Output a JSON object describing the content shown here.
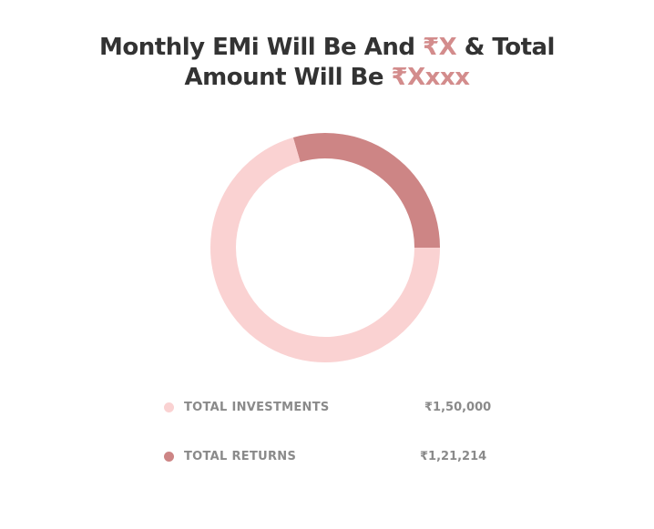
{
  "heading": {
    "line1_prefix": "Monthly EMi Will Be And ",
    "line1_amount": "₹X",
    "line1_suffix": " & Total",
    "line2_prefix": "Amount Will Be ",
    "line2_amount": "₹Xxxx"
  },
  "colors": {
    "heading_text": "#333333",
    "accent": "#d38c8c",
    "investments": "#fad2d2",
    "returns": "#cd8585",
    "legend_text": "#8a8a8a"
  },
  "chart_data": {
    "type": "pie",
    "style": "donut",
    "start": "top",
    "direction": "clockwise",
    "first_slice": "returns",
    "slices": [
      {
        "label": "TOTAL RETURNS",
        "value": 121214,
        "display": "₹1,21,214",
        "color": "#cd8585"
      },
      {
        "label": "TOTAL INVESTMENTS",
        "value": 150000,
        "display": "₹1,50,000",
        "color": "#fad2d2"
      }
    ]
  },
  "legend": [
    {
      "label": "TOTAL INVESTMENTS",
      "value": "₹1,50,000"
    },
    {
      "label": "TOTAL RETURNS",
      "value": "₹1,21,214"
    }
  ]
}
